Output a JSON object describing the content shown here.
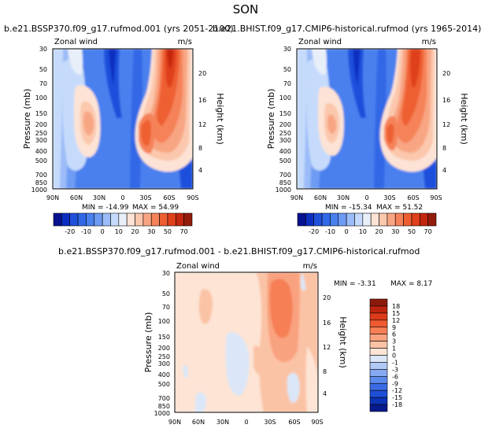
{
  "page_title": "SON",
  "chart_data": [
    {
      "type": "contour",
      "panel": "top-left",
      "title": "b.e21.BSSP370.f09_g17.rufmod.001 (yrs 2051-2100)",
      "variable_label": "Zonal wind",
      "units": "m/s",
      "ylabel": "Pressure (mb)",
      "ylabel_right": "Height (km)",
      "x_ticks": [
        "90N",
        "60N",
        "30N",
        "0",
        "30S",
        "60S",
        "90S"
      ],
      "y_ticks": [
        "30",
        "50",
        "70",
        "100",
        "150",
        "200",
        "250",
        "300",
        "400",
        "500",
        "700",
        "850",
        "1000"
      ],
      "y_ticks_right": [
        "20",
        "16",
        "12",
        "8",
        "4"
      ],
      "min_label": "MIN = -14.99",
      "max_label": "MAX = 54.99",
      "min": -14.99,
      "max": 54.99
    },
    {
      "type": "contour",
      "panel": "top-right",
      "title": "b.e21.BHIST.f09_g17.CMIP6-historical.rufmod (yrs 1965-2014)",
      "variable_label": "Zonal wind",
      "units": "m/s",
      "ylabel": "Pressure (mb)",
      "ylabel_right": "Height (km)",
      "x_ticks": [
        "90N",
        "60N",
        "30N",
        "0",
        "30S",
        "60S",
        "90S"
      ],
      "y_ticks": [
        "30",
        "50",
        "70",
        "100",
        "150",
        "200",
        "250",
        "300",
        "400",
        "500",
        "700",
        "850",
        "1000"
      ],
      "y_ticks_right": [
        "20",
        "16",
        "12",
        "8",
        "4"
      ],
      "min_label": "MIN = -15.34",
      "max_label": "MAX = 51.52",
      "min": -15.34,
      "max": 51.52
    },
    {
      "type": "contour",
      "panel": "bottom-difference",
      "title": "b.e21.BSSP370.f09_g17.rufmod.001 - b.e21.BHIST.f09_g17.CMIP6-historical.rufmod",
      "variable_label": "Zonal wind",
      "units": "m/s",
      "ylabel": "Pressure (mb)",
      "ylabel_right": "Height (km)",
      "x_ticks": [
        "90N",
        "60N",
        "30N",
        "0",
        "30S",
        "60S",
        "90S"
      ],
      "y_ticks": [
        "30",
        "50",
        "70",
        "100",
        "150",
        "200",
        "250",
        "300",
        "400",
        "500",
        "700",
        "850",
        "1000"
      ],
      "y_ticks_right": [
        "20",
        "16",
        "12",
        "8",
        "4"
      ],
      "min_label": "MIN = -3.31",
      "max_label": "MAX = 8.17",
      "min": -3.31,
      "max": 8.17
    }
  ],
  "top_colorbar": {
    "labels": [
      "-20",
      "-10",
      "0",
      "10",
      "20",
      "30",
      "50",
      "70"
    ],
    "colors": [
      "#05118f",
      "#0b2ec0",
      "#1f50dc",
      "#3068e6",
      "#4880ee",
      "#6e9bf3",
      "#9bbcf8",
      "#c6dbfb",
      "#e8eff9",
      "#fde3d5",
      "#fbc8ad",
      "#f8a583",
      "#f58258",
      "#ee5e33",
      "#df3f1a",
      "#c3260f",
      "#941b0b"
    ]
  },
  "bottom_colorbar": {
    "labels": [
      "18",
      "15",
      "12",
      "9",
      "6",
      "3",
      "1",
      "0",
      "-1",
      "-3",
      "-6",
      "-9",
      "-12",
      "-15",
      "-18"
    ],
    "colors": [
      "#8c1a0c",
      "#bd240f",
      "#dc3b1a",
      "#ef5a30",
      "#f67f55",
      "#f9a27f",
      "#fbc3a6",
      "#fde4d4",
      "#dbe7f8",
      "#b0c9f5",
      "#86aaf1",
      "#5c8aec",
      "#3a6be3",
      "#1f4fd6",
      "#0c32b6",
      "#061a8c"
    ]
  }
}
